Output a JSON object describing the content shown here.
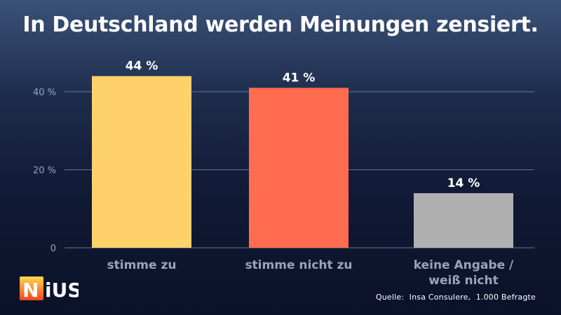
{
  "chart_data": {
    "type": "bar",
    "title": "In Deutschland werden Meinungen zensiert.",
    "categories": [
      "stimme zu",
      "stimme nicht zu",
      "keine Angabe / weiß nicht"
    ],
    "category_lines": [
      [
        "stimme zu"
      ],
      [
        "stimme nicht zu"
      ],
      [
        "keine Angabe /",
        "weiß nicht"
      ]
    ],
    "values": [
      44,
      41,
      14
    ],
    "value_labels": [
      "44 %",
      "41 %",
      "14 %"
    ],
    "colors": [
      "#ffd16a",
      "#ff6c50",
      "#b0b0b0"
    ],
    "yticks": [
      {
        "value": 0,
        "label": "0"
      },
      {
        "value": 20,
        "label": "20 %"
      },
      {
        "value": 40,
        "label": "40 %"
      }
    ],
    "ylim": [
      0,
      40
    ],
    "grid": true,
    "xlabel": "",
    "ylabel": ""
  },
  "source": "Quelle:  Insa Consulere,  1.000 Befragte",
  "logo": {
    "text": "NiUS",
    "gradient_top": "#ffd84a",
    "gradient_bottom": "#f2451f"
  }
}
